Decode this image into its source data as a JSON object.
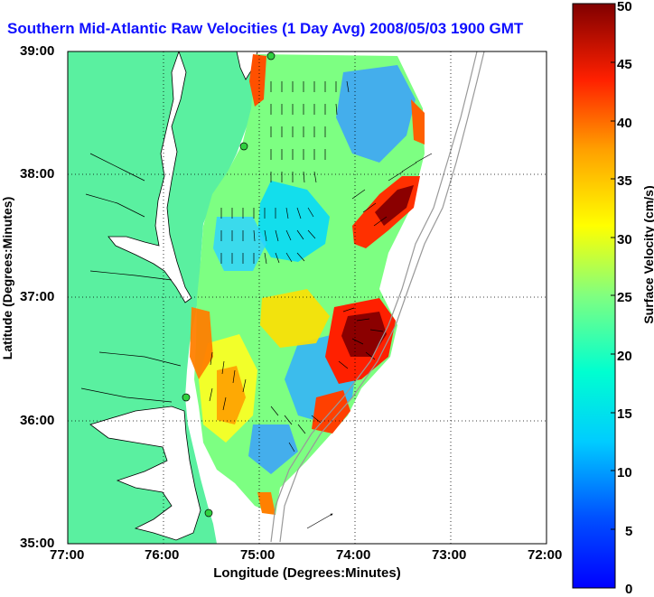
{
  "title": "Southern Mid-Atlantic Raw Velocities (1 Day Avg) 2008/05/03 1900 GMT",
  "map": {
    "xlabel": "Longitude (Degrees:Minutes)",
    "ylabel": "Latitude (Degrees:Minutes)",
    "x_ticks": [
      "77:00",
      "76:00",
      "75:00",
      "74:00",
      "73:00",
      "72:00"
    ],
    "y_ticks": [
      "39:00",
      "38:00",
      "37:00",
      "36:00",
      "35:00"
    ],
    "lon_range": [
      -77,
      -72
    ],
    "lat_range": [
      35,
      39
    ],
    "land_color": "#5af0a0",
    "grid": "dotted"
  },
  "colorbar": {
    "label": "Surface Velocity (cm/s)",
    "ticks": [
      "0",
      "5",
      "10",
      "15",
      "20",
      "25",
      "30",
      "35",
      "40",
      "45",
      "50"
    ],
    "range": [
      0,
      50
    ],
    "colormap": "jet"
  }
}
